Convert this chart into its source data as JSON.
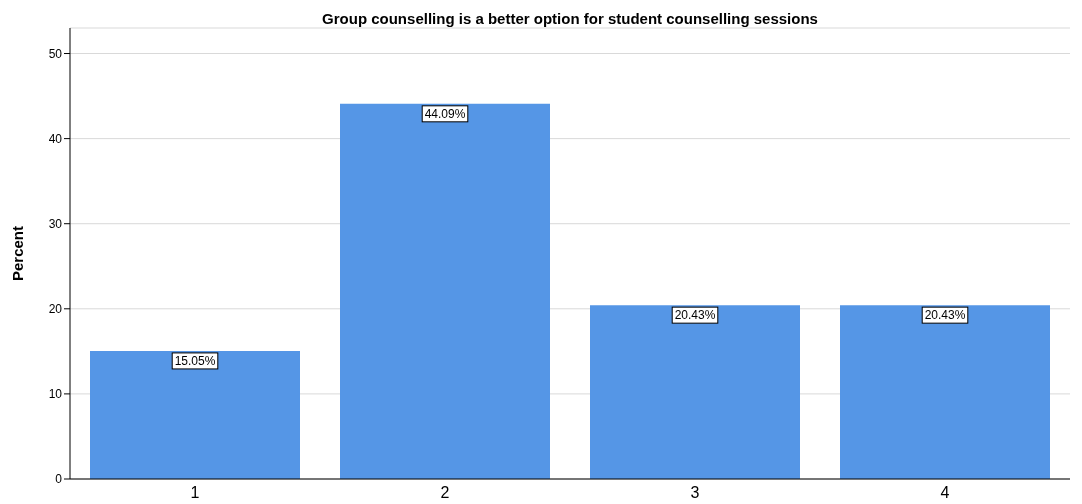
{
  "chart_data": {
    "type": "bar",
    "title": "Group counselling is a better option for student counselling sessions",
    "ylabel": "Percent",
    "categories": [
      "1",
      "2",
      "3",
      "4"
    ],
    "values": [
      15.05,
      44.09,
      20.43,
      20.43
    ],
    "value_labels": [
      "15.05%",
      "44.09%",
      "20.43%",
      "20.43%"
    ],
    "color": "#5596e6",
    "ylim": [
      0,
      53
    ],
    "yticks": [
      0,
      10,
      20,
      30,
      40,
      50
    ],
    "grid": "y"
  }
}
